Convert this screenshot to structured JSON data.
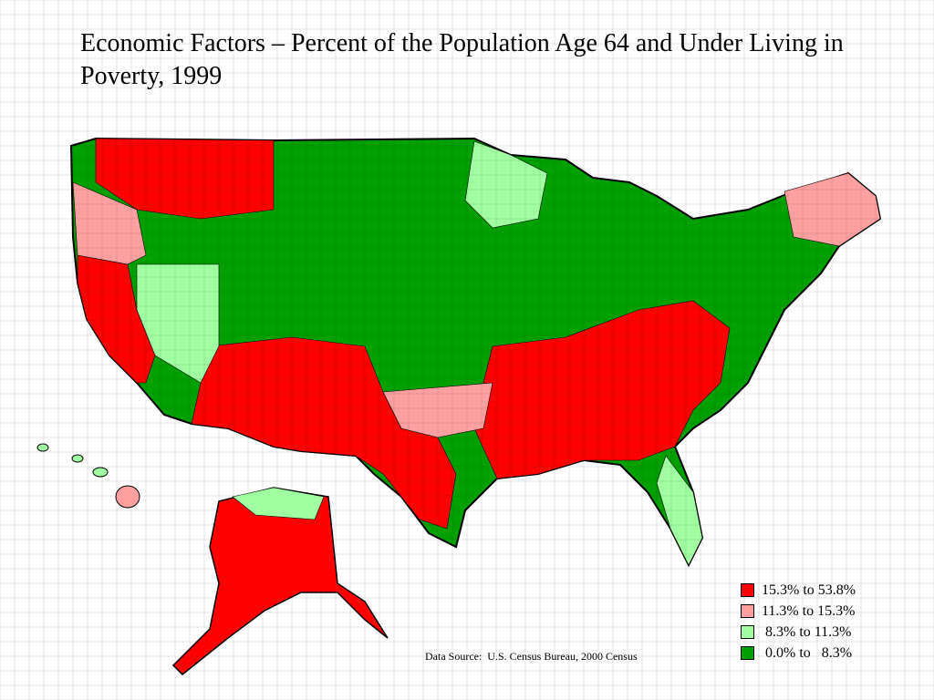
{
  "title": "Economic Factors – Percent of the Population Age 64 and Under Living in Poverty, 1999",
  "colors": {
    "high": "#ff0000",
    "mid_high": "#ffa0a0",
    "mid_low": "#a0ffa0",
    "low": "#00a000",
    "outline": "#000000"
  },
  "legend": [
    {
      "label": "15.3% to 53.8%",
      "color": "#ff0000"
    },
    {
      "label": "11.3% to 15.3%",
      "color": "#ffa0a0"
    },
    {
      "label": " 8.3% to 11.3%",
      "color": "#a0ffa0"
    },
    {
      "label": " 0.0% to   8.3%",
      "color": "#00a000"
    }
  ],
  "source": "Data Source:  U.S. Census Bureau, 2000 Census"
}
